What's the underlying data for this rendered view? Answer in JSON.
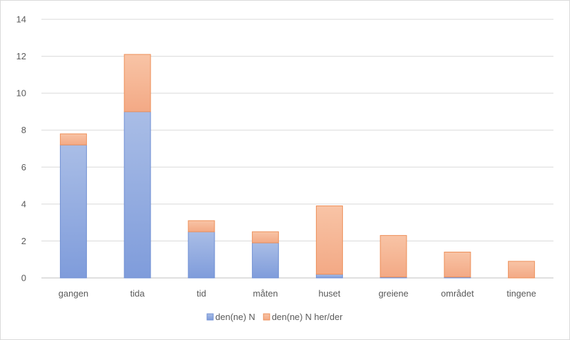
{
  "chart_data": {
    "type": "bar",
    "stacked": true,
    "categories": [
      "gangen",
      "tida",
      "tid",
      "måten",
      "huset",
      "greiene",
      "området",
      "tingene"
    ],
    "series": [
      {
        "name": "den(ne) N",
        "values": [
          7.2,
          9.0,
          2.5,
          1.9,
          0.2,
          0.05,
          0.05,
          0.0
        ],
        "color": "#8faadc"
      },
      {
        "name": "den(ne) N her/der",
        "values": [
          0.6,
          3.1,
          0.6,
          0.6,
          3.7,
          2.25,
          1.35,
          0.9
        ],
        "color": "#f4b183"
      }
    ],
    "ylim": [
      0,
      14
    ],
    "yticks": [
      0,
      2,
      4,
      6,
      8,
      10,
      12,
      14
    ],
    "grid": true,
    "legend_position": "bottom",
    "title": "",
    "xlabel": "",
    "ylabel": ""
  }
}
